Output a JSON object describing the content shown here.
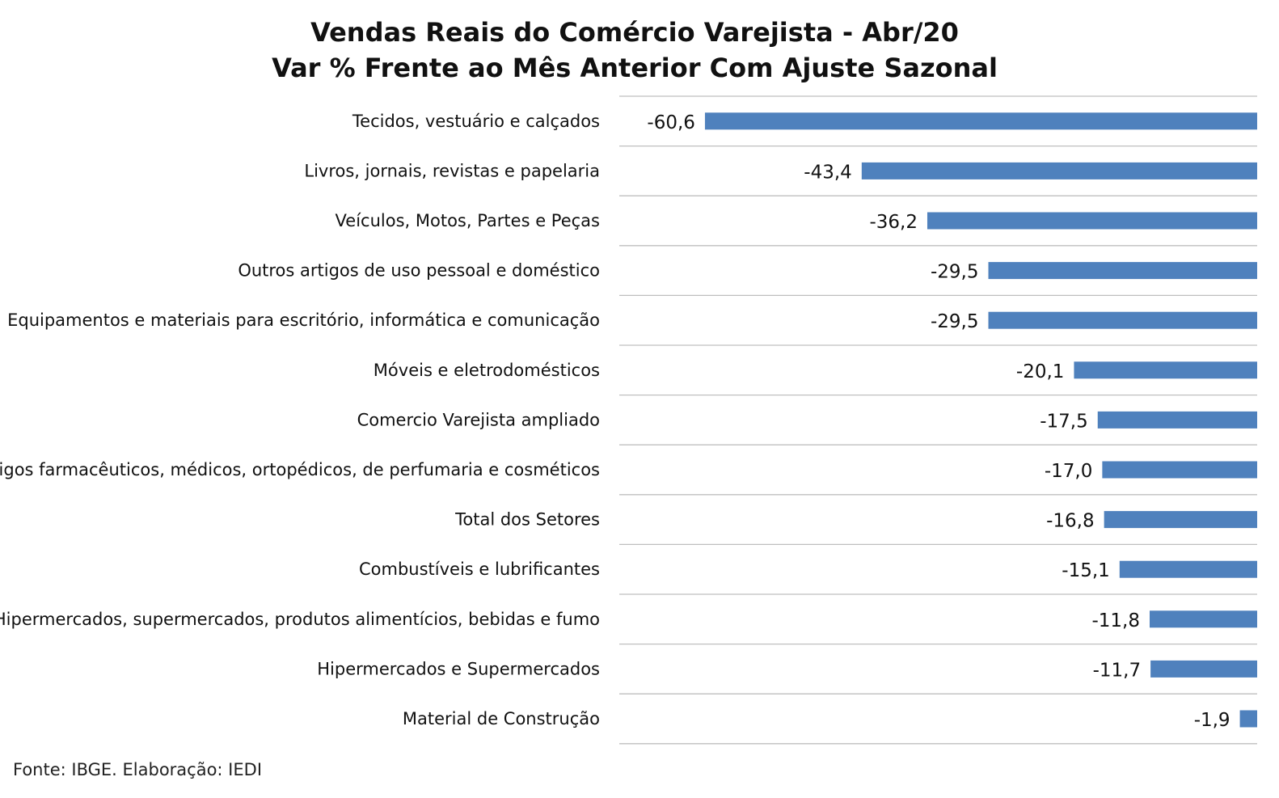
{
  "chart_data": {
    "type": "bar",
    "orientation": "horizontal",
    "title": "Vendas Reais do Comércio Varejista - Abr/20",
    "subtitle": "Var % Frente ao Mês Anterior Com Ajuste Sazonal",
    "categories": [
      "Tecidos, vestuário e calçados",
      "Livros, jornais, revistas e papelaria",
      "Veículos, Motos, Partes e Peças",
      "Outros artigos de uso pessoal e doméstico",
      "Equipamentos e materiais para escritório, informática e comunicação",
      "Móveis e eletrodomésticos",
      "Comercio Varejista ampliado",
      "Artigos farmacêuticos, médicos, ortopédicos, de perfumaria e cosméticos",
      "Total dos Setores",
      "Combustíveis e lubrificantes",
      "Hipermercados, supermercados, produtos alimentícios, bebidas e fumo",
      "Hipermercados e Supermercados",
      "Material de Construção"
    ],
    "values": [
      -60.6,
      -43.4,
      -36.2,
      -29.5,
      -29.5,
      -20.1,
      -17.5,
      -17.0,
      -16.8,
      -15.1,
      -11.8,
      -11.7,
      -1.9
    ],
    "data_labels": [
      "-60,6",
      "-43,4",
      "-36,2",
      "-29,5",
      "-29,5",
      "-20,1",
      "-17,5",
      "-17,0",
      "-16,8",
      "-15,1",
      "-11,8",
      "-11,7",
      "-1,9"
    ],
    "xlim": [
      -70,
      0
    ],
    "xlabel": "",
    "ylabel": "",
    "grid": "horizontal separators between categories",
    "legend": "none",
    "colors": {
      "bar": "#4f81bd",
      "gridline": "#bfbfbf"
    }
  },
  "source": "Fonte: IBGE. Elaboração: IEDI"
}
